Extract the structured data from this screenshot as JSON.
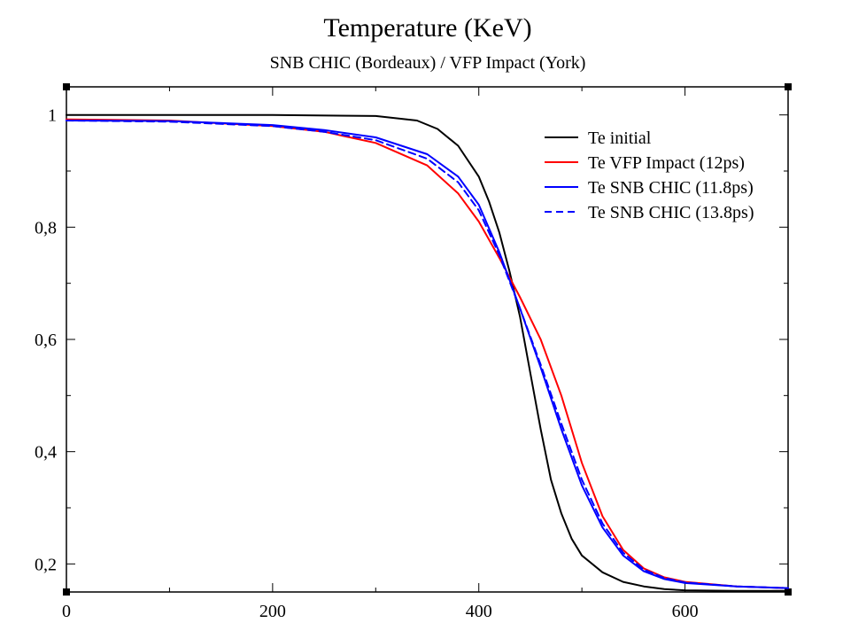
{
  "chart_data": {
    "type": "line",
    "title": "Temperature (KeV)",
    "subtitle": "SNB CHIC (Bordeaux) / VFP Impact (York)",
    "xlabel": "",
    "ylabel": "",
    "xlim": [
      0,
      700
    ],
    "ylim": [
      0.15,
      1.05
    ],
    "x_ticks": [
      0,
      200,
      400,
      600
    ],
    "x_tick_labels": [
      "0",
      "200",
      "400",
      "600"
    ],
    "y_ticks": [
      0.2,
      0.4,
      0.6,
      0.8,
      1.0
    ],
    "y_tick_labels": [
      "0,2",
      "0,4",
      "0,6",
      "0,8",
      "1"
    ],
    "grid": false,
    "legend_position": "top-right",
    "series": [
      {
        "name": "Te initial",
        "color": "#000000",
        "dash": "solid",
        "x": [
          0,
          100,
          200,
          300,
          340,
          360,
          380,
          400,
          410,
          420,
          430,
          440,
          450,
          460,
          470,
          480,
          490,
          500,
          520,
          540,
          560,
          580,
          600,
          650,
          700
        ],
        "y": [
          1.0,
          1.0,
          1.0,
          0.998,
          0.99,
          0.975,
          0.945,
          0.89,
          0.845,
          0.79,
          0.72,
          0.64,
          0.54,
          0.44,
          0.35,
          0.29,
          0.245,
          0.215,
          0.185,
          0.168,
          0.16,
          0.155,
          0.153,
          0.152,
          0.152
        ]
      },
      {
        "name": "Te VFP Impact (12ps)",
        "color": "#ff0000",
        "dash": "solid",
        "x": [
          0,
          100,
          200,
          250,
          300,
          350,
          380,
          400,
          420,
          440,
          460,
          480,
          500,
          520,
          540,
          560,
          580,
          600,
          650,
          700
        ],
        "y": [
          0.992,
          0.99,
          0.98,
          0.97,
          0.95,
          0.91,
          0.86,
          0.81,
          0.745,
          0.675,
          0.6,
          0.5,
          0.38,
          0.285,
          0.225,
          0.192,
          0.176,
          0.168,
          0.16,
          0.157
        ]
      },
      {
        "name": "Te SNB CHIC (11.8ps)",
        "color": "#0000ff",
        "dash": "solid",
        "x": [
          0,
          100,
          200,
          250,
          300,
          350,
          380,
          400,
          420,
          440,
          460,
          480,
          500,
          520,
          540,
          560,
          580,
          600,
          650,
          700
        ],
        "y": [
          0.99,
          0.989,
          0.982,
          0.973,
          0.96,
          0.93,
          0.89,
          0.84,
          0.755,
          0.655,
          0.55,
          0.44,
          0.34,
          0.265,
          0.215,
          0.187,
          0.173,
          0.166,
          0.16,
          0.157
        ]
      },
      {
        "name": "Te SNB CHIC (13.8ps)",
        "color": "#0000ff",
        "dash": "dashed",
        "x": [
          0,
          100,
          200,
          250,
          300,
          350,
          380,
          400,
          420,
          440,
          460,
          480,
          500,
          520,
          540,
          560,
          580,
          600,
          650,
          700
        ],
        "y": [
          0.99,
          0.988,
          0.98,
          0.97,
          0.955,
          0.922,
          0.88,
          0.83,
          0.75,
          0.655,
          0.555,
          0.45,
          0.35,
          0.272,
          0.22,
          0.19,
          0.175,
          0.167,
          0.16,
          0.157
        ]
      }
    ]
  }
}
